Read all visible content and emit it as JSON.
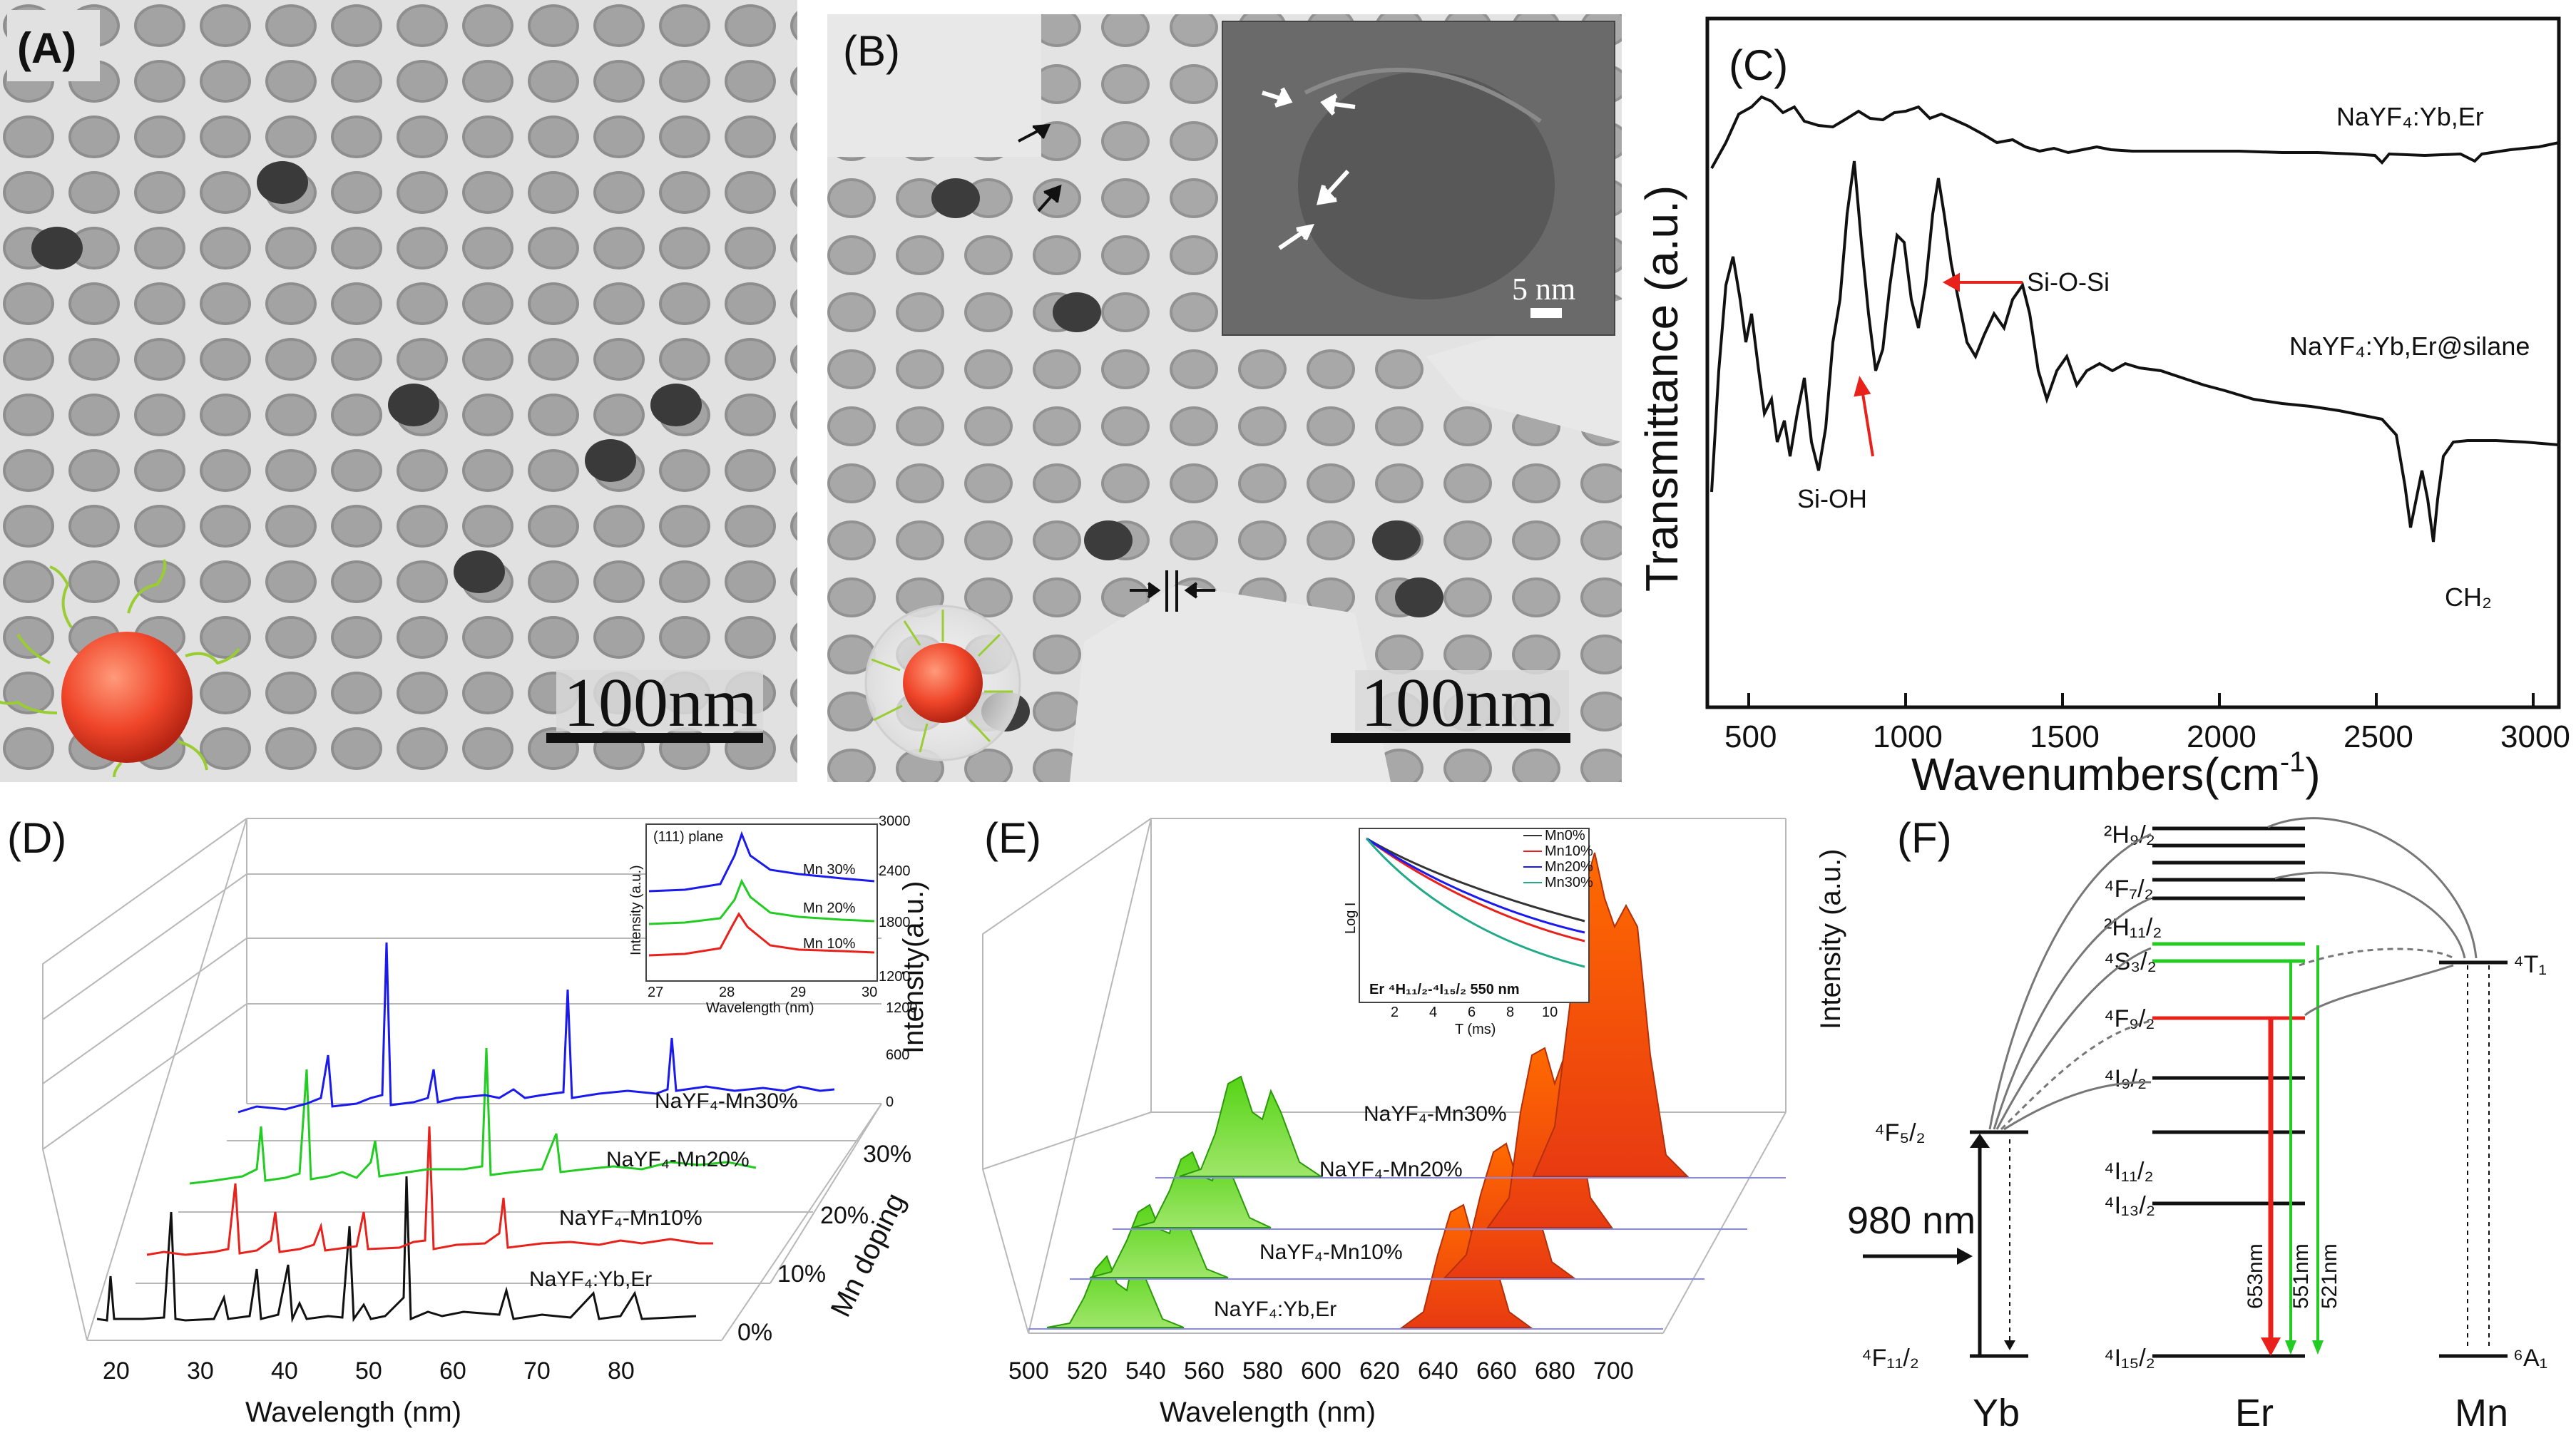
{
  "panels": {
    "A": {
      "label": "(A)",
      "scale_bar": "100nm"
    },
    "B": {
      "label": "(B)",
      "scale_bar": "100nm",
      "inset_scale": "5 nm"
    },
    "C": {
      "label": "(C)",
      "xlabel": "Wavenumbers(cm",
      "xlabel_sup": "-1",
      "xlabel_end": ")",
      "ylabel": "Transmittance (a.u.)",
      "xticks": [
        "500",
        "1000",
        "1500",
        "2000",
        "2500",
        "3000"
      ],
      "curve1": "NaYF₄:Yb,Er",
      "curve2": "NaYF₄:Yb,Er@silane",
      "annotations": [
        "Si-O-Si",
        "Si-OH",
        "CH₂"
      ]
    },
    "D": {
      "label": "(D)",
      "xlabel": "Wavelength (nm)",
      "ylabel": "Mn doping",
      "xticks": [
        "20",
        "30",
        "40",
        "50",
        "60",
        "70",
        "80"
      ],
      "depth_ticks": [
        "0%",
        "10%",
        "20%",
        "30%"
      ],
      "series": [
        "NaYF₄:Yb,Er",
        "NaYF₄-Mn10%",
        "NaYF₄-Mn20%",
        "NaYF₄-Mn30%"
      ],
      "inset": {
        "title": "(111) plane",
        "xlabel": "Wavelength (nm)",
        "ylabel": "Intensity (a.u.)",
        "xticks": [
          "27",
          "28",
          "29",
          "30"
        ],
        "yticks": [
          "1200",
          "1800",
          "2400",
          "3000"
        ],
        "right_ticks": [
          "0",
          "600",
          "1200",
          "1800",
          "2400",
          "3000"
        ],
        "series": [
          "Mn 30%",
          "Mn 20%",
          "Mn 10%"
        ]
      }
    },
    "E": {
      "label": "(E)",
      "xlabel": "Wavelength (nm)",
      "ylabel": "Intensity (a.u.)",
      "left_label": "Intensity(a.u.)",
      "xticks": [
        "500",
        "520",
        "540",
        "560",
        "580",
        "600",
        "620",
        "640",
        "660",
        "680",
        "700"
      ],
      "series": [
        "NaYF₄:Yb,Er",
        "NaYF₄-Mn10%",
        "NaYF₄-Mn20%",
        "NaYF₄-Mn30%"
      ],
      "inset": {
        "ylabel": "Log I",
        "xlabel": "T (ms)",
        "xticks": [
          "2",
          "4",
          "6",
          "8",
          "10"
        ],
        "legend": [
          "Mn0%",
          "Mn10%",
          "Mn20%",
          "Mn30%"
        ],
        "caption": "Er ⁴H₁₁/₂-⁴I₁₅/₂  550 nm"
      }
    },
    "F": {
      "label": "(F)",
      "excitation": "980 nm",
      "ions": [
        "Yb",
        "Er",
        "Mn"
      ],
      "yb_levels": [
        "⁴F₅/₂",
        "⁴F₁₁/₂"
      ],
      "er_levels": [
        "²H₉/₂",
        "⁴F₇/₂",
        "²H₁₁/₂",
        "⁴S₃/₂",
        "⁴F₉/₂",
        "⁴I₉/₂",
        "⁴I₁₁/₂",
        "⁴I₁₃/₂",
        "⁴I₁₅/₂"
      ],
      "mn_levels": [
        "⁴T₁",
        "⁶A₁"
      ],
      "emissions": [
        "653nm",
        "551nm",
        "521nm"
      ]
    }
  },
  "colors": {
    "red": "#e8211b",
    "green": "#22cc22",
    "blue": "#1a1aee",
    "black": "#111111"
  }
}
